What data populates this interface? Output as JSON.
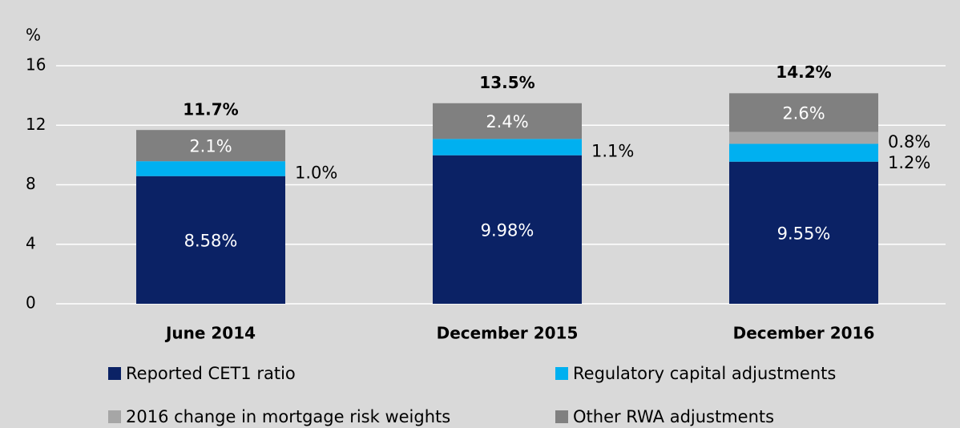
{
  "chart_data": {
    "type": "stacked_bar",
    "y_axis_label": "%",
    "categories": [
      "June 2014",
      "December 2015",
      "December 2016"
    ],
    "series": [
      {
        "name": "Reported CET1 ratio",
        "color": "#0b2265",
        "values": [
          8.58,
          9.98,
          9.55
        ],
        "value_labels": [
          "8.58%",
          "9.98%",
          "9.55%"
        ]
      },
      {
        "name": "Regulatory capital adjustments",
        "color": "#00b0f0",
        "values": [
          1.0,
          1.1,
          1.2
        ],
        "value_labels": [
          "1.0%",
          "1.1%",
          "1.2%"
        ]
      },
      {
        "name": "2016 change in mortgage risk weights",
        "color": "#a6a6a6",
        "values": [
          null,
          null,
          0.8
        ],
        "value_labels": [
          null,
          null,
          "0.8%"
        ]
      },
      {
        "name": "Other RWA adjustments",
        "color": "#808080",
        "values": [
          2.1,
          2.4,
          2.6
        ],
        "value_labels": [
          "2.1%",
          "2.4%",
          "2.6%"
        ]
      }
    ],
    "totals": [
      11.7,
      13.5,
      14.2
    ],
    "total_labels": [
      "11.7%",
      "13.5%",
      "14.2%"
    ],
    "ylim": [
      0,
      16
    ],
    "yticks": [
      0,
      4,
      8,
      12,
      16
    ],
    "grid": true
  }
}
